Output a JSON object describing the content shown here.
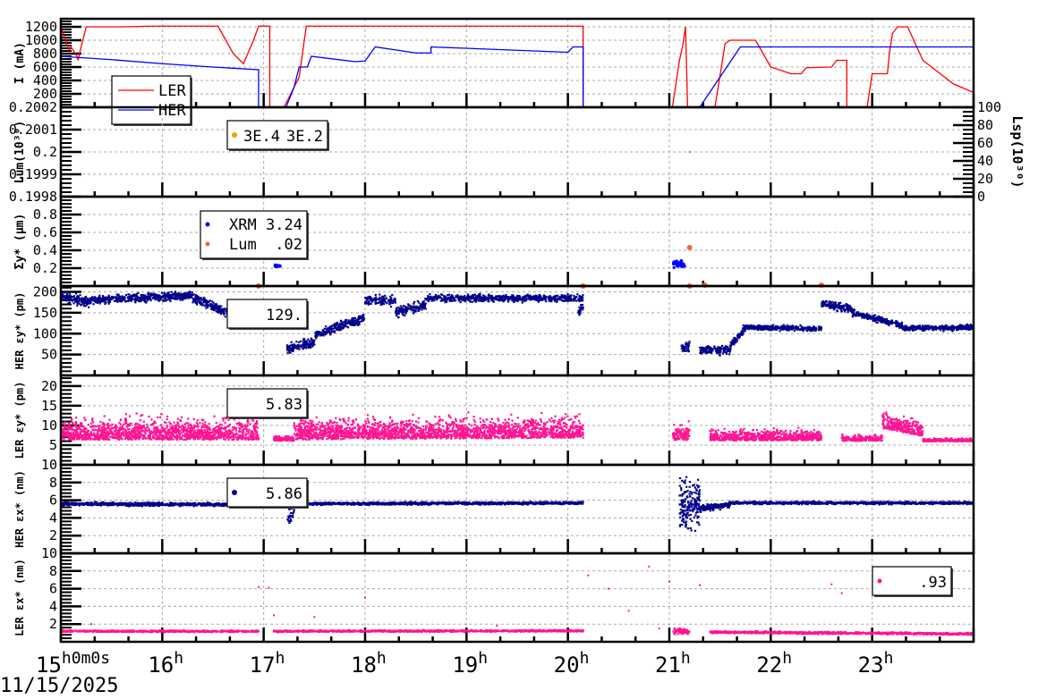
{
  "chart_data": {
    "type": "line+scatter (stacked time-series panels)",
    "xlabel_date": "11/15/2025",
    "xlim": [
      15,
      24
    ],
    "xticks": [
      {
        "h": 15,
        "label": "15",
        "sup": "h0m0s"
      },
      {
        "h": 16,
        "label": "16",
        "sup": "h"
      },
      {
        "h": 17,
        "label": "17",
        "sup": "h"
      },
      {
        "h": 18,
        "label": "18",
        "sup": "h"
      },
      {
        "h": 19,
        "label": "19",
        "sup": "h"
      },
      {
        "h": 20,
        "label": "20",
        "sup": "h"
      },
      {
        "h": 21,
        "label": "21",
        "sup": "h"
      },
      {
        "h": 22,
        "label": "22",
        "sup": "h"
      },
      {
        "h": 23,
        "label": "23",
        "sup": "h"
      }
    ],
    "panels": [
      {
        "id": "current",
        "ylabel": "I (mA)",
        "ylim": [
          0,
          1320
        ],
        "yticks": [
          "200",
          "400",
          "600",
          "800",
          "1000",
          "1200"
        ],
        "ytickvals": [
          200,
          400,
          600,
          800,
          1000,
          1200
        ],
        "legend": [
          "LER",
          "HER"
        ],
        "series": [
          {
            "name": "LER",
            "color": "#ff0000",
            "type": "line",
            "points": [
              [
                15,
                1200
              ],
              [
                15.08,
                850
              ],
              [
                15.1,
                900
              ],
              [
                15.16,
                760
              ],
              [
                15.17,
                700
              ],
              [
                15.2,
                900
              ],
              [
                15.25,
                1200
              ],
              [
                15.6,
                1200
              ],
              [
                15.9,
                1210
              ],
              [
                16.55,
                1210
              ],
              [
                16.7,
                800
              ],
              [
                16.8,
                650
              ],
              [
                16.9,
                1000
              ],
              [
                16.95,
                1210
              ],
              [
                17.06,
                1210
              ],
              [
                17.06,
                0
              ],
              [
                17.2,
                0
              ],
              [
                17.3,
                300
              ],
              [
                17.35,
                450
              ],
              [
                17.42,
                1210
              ],
              [
                20.15,
                1210
              ],
              [
                20.15,
                0
              ],
              [
                21.03,
                0
              ],
              [
                21.1,
                700
              ],
              [
                21.13,
                900
              ],
              [
                21.16,
                1200
              ],
              [
                21.18,
                0
              ],
              [
                21.45,
                0
              ],
              [
                21.55,
                950
              ],
              [
                21.6,
                1000
              ],
              [
                21.85,
                1000
              ],
              [
                22.0,
                600
              ],
              [
                22.2,
                500
              ],
              [
                22.3,
                500
              ],
              [
                22.35,
                590
              ],
              [
                22.6,
                600
              ],
              [
                22.65,
                700
              ],
              [
                22.75,
                700
              ],
              [
                22.75,
                0
              ],
              [
                22.95,
                0
              ],
              [
                23.0,
                500
              ],
              [
                23.15,
                500
              ],
              [
                23.17,
                800
              ],
              [
                23.2,
                1100
              ],
              [
                23.25,
                1200
              ],
              [
                23.35,
                1200
              ],
              [
                23.5,
                700
              ],
              [
                23.8,
                350
              ],
              [
                24,
                220
              ]
            ]
          },
          {
            "name": "HER",
            "color": "#0000ff",
            "type": "line",
            "points": [
              [
                15,
                760
              ],
              [
                15.5,
                710
              ],
              [
                16,
                650
              ],
              [
                16.5,
                600
              ],
              [
                16.95,
                560
              ],
              [
                16.95,
                0
              ],
              [
                17.22,
                0
              ],
              [
                17.3,
                300
              ],
              [
                17.35,
                600
              ],
              [
                17.43,
                600
              ],
              [
                17.47,
                760
              ],
              [
                17.9,
                680
              ],
              [
                18.0,
                690
              ],
              [
                18.1,
                900
              ],
              [
                18.5,
                810
              ],
              [
                18.65,
                810
              ],
              [
                18.65,
                900
              ],
              [
                20.0,
                820
              ],
              [
                20.05,
                900
              ],
              [
                20.15,
                900
              ],
              [
                20.15,
                0
              ],
              [
                21.3,
                0
              ],
              [
                21.7,
                900
              ],
              [
                24,
                900
              ]
            ]
          }
        ]
      },
      {
        "id": "lum",
        "ylabel": "Lum(10³⁰)",
        "ylim": [
          0.1998,
          0.2002
        ],
        "yticks": [
          "0.1998",
          "0.1999",
          "0.2",
          "0.2001",
          "0.2002"
        ],
        "ytickvals": [
          0.1998,
          0.1999,
          0.2,
          0.2001,
          0.2002
        ],
        "y2label": "Lsp(10³⁰)",
        "y2lim": [
          0,
          100
        ],
        "y2ticks": [
          "0",
          "20",
          "40",
          "60",
          "80",
          "100"
        ],
        "legend_values": [
          "3E.4",
          "3E.2"
        ],
        "legend_color": "#f0a000"
      },
      {
        "id": "sigma",
        "ylabel": "Σy* (µm)",
        "ylim": [
          0,
          1
        ],
        "yticks": [
          "0.2",
          "0.4",
          "0.6",
          "0.8"
        ],
        "ytickvals": [
          0.2,
          0.4,
          0.6,
          0.8
        ],
        "legend": [
          {
            "name": "XRM",
            "value": "3.24",
            "color": "#0000ff"
          },
          {
            "name": "Lum",
            "value": ".02",
            "color": "#ff6040"
          }
        ],
        "XRM_segments": [
          [
            17.1,
            17.16,
            0.23,
            0.23,
            0.01,
            25
          ],
          [
            21.03,
            21.15,
            0.25,
            0.25,
            0.03,
            40
          ]
        ],
        "Lum_points": [
          [
            16.95,
            0.0
          ],
          [
            20.15,
            0.0
          ],
          [
            21.2,
            0.43
          ],
          [
            21.2,
            0.0
          ],
          [
            21.35,
            0.01
          ],
          [
            22.5,
            0.01
          ]
        ]
      },
      {
        "id": "her_ey",
        "ylabel": "HER εy* (pm)",
        "ylim": [
          0,
          214
        ],
        "yticks": [
          "50",
          "100",
          "150",
          "200"
        ],
        "ytickvals": [
          50,
          100,
          150,
          200
        ],
        "legend_value": "129.",
        "color": "#00008b",
        "segments": [
          [
            15,
            15.3,
            190,
            175,
            10,
            150
          ],
          [
            15.3,
            16.3,
            180,
            192,
            8,
            450
          ],
          [
            16.3,
            16.75,
            185,
            140,
            10,
            200
          ],
          [
            16.75,
            16.95,
            140,
            165,
            10,
            100
          ],
          [
            17.23,
            17.5,
            65,
            80,
            10,
            120
          ],
          [
            17.5,
            18.0,
            95,
            140,
            10,
            220
          ],
          [
            18.0,
            18.3,
            180,
            180,
            10,
            120
          ],
          [
            18.3,
            18.6,
            150,
            170,
            10,
            130
          ],
          [
            18.6,
            20.15,
            185,
            185,
            7,
            600
          ],
          [
            20.1,
            20.15,
            150,
            165,
            10,
            30
          ],
          [
            21.12,
            21.2,
            65,
            70,
            12,
            40
          ],
          [
            21.3,
            21.6,
            60,
            62,
            9,
            130
          ],
          [
            21.6,
            21.75,
            70,
            115,
            8,
            70
          ],
          [
            21.75,
            22.5,
            115,
            112,
            5,
            330
          ],
          [
            22.5,
            22.8,
            172,
            160,
            8,
            140
          ],
          [
            22.8,
            23.3,
            150,
            120,
            6,
            220
          ],
          [
            23.3,
            24,
            113,
            115,
            5,
            320
          ]
        ]
      },
      {
        "id": "ler_ey",
        "ylabel": "LER εy* (pm)",
        "ylim": [
          0,
          22.7
        ],
        "yticks": [
          "5",
          "10",
          "15",
          "20"
        ],
        "ytickvals": [
          5,
          10,
          15,
          20
        ],
        "legend_value": "5.83",
        "color": "#ff1493",
        "segments": [
          [
            15,
            16.95,
            10,
            10,
            4,
            1400
          ],
          [
            17.1,
            17.3,
            7,
            7,
            1,
            120
          ],
          [
            17.3,
            20.15,
            10,
            10.5,
            4,
            2000
          ],
          [
            21.03,
            21.2,
            9,
            9,
            3,
            120
          ],
          [
            21.4,
            22.5,
            8,
            8,
            2,
            700
          ],
          [
            22.7,
            23.1,
            7,
            7,
            1,
            200
          ],
          [
            23.1,
            23.5,
            12,
            10,
            3,
            260
          ],
          [
            23.5,
            24,
            6.5,
            6.5,
            0.6,
            250
          ]
        ]
      },
      {
        "id": "her_ex",
        "ylabel": "HER εx* (nm)",
        "ylim": [
          0,
          10
        ],
        "yticks": [
          "2",
          "4",
          "6",
          "8",
          "10"
        ],
        "ytickvals": [
          2,
          4,
          6,
          8,
          10
        ],
        "legend_value": "5.86",
        "color": "#00008b",
        "segments": [
          [
            15,
            16.95,
            5.6,
            5.5,
            0.15,
            800
          ],
          [
            17.23,
            17.3,
            3.5,
            5.2,
            1.2,
            30
          ],
          [
            17.3,
            20.15,
            5.6,
            5.7,
            0.12,
            1100
          ],
          [
            21.1,
            21.3,
            5.5,
            5.5,
            2.5,
            180
          ],
          [
            21.3,
            21.6,
            5.0,
            5.6,
            0.3,
            150
          ],
          [
            21.6,
            24,
            5.7,
            5.7,
            0.12,
            900
          ]
        ]
      },
      {
        "id": "ler_ex",
        "ylabel": "LER εx* (nm)",
        "ylim": [
          0,
          10
        ],
        "yticks": [
          "2",
          "4",
          "6",
          "8",
          "10"
        ],
        "ytickvals": [
          2,
          4,
          6,
          8,
          10
        ],
        "legend_value": ".93",
        "color": "#ff1493",
        "segments": [
          [
            15,
            16.95,
            1.2,
            1.2,
            0.08,
            700
          ],
          [
            17.1,
            20.15,
            1.2,
            1.25,
            0.08,
            1100
          ],
          [
            21.03,
            21.2,
            1.2,
            1.2,
            0.3,
            60
          ],
          [
            21.4,
            24,
            1.1,
            0.9,
            0.1,
            950
          ]
        ],
        "outliers": [
          [
            16.95,
            6.2
          ],
          [
            17.05,
            6.1
          ],
          [
            17.1,
            3.0
          ],
          [
            17.5,
            2.8
          ],
          [
            18.0,
            5.0
          ],
          [
            20.2,
            7.5
          ],
          [
            20.4,
            6.0
          ],
          [
            20.8,
            8.5
          ],
          [
            20.6,
            3.5
          ],
          [
            20.9,
            1.5
          ],
          [
            21.0,
            6.8
          ],
          [
            21.3,
            6.4
          ],
          [
            22.6,
            6.5
          ],
          [
            22.7,
            5.5
          ],
          [
            22.65,
            1.0
          ],
          [
            15.3,
            2.0
          ],
          [
            19.3,
            1.8
          ]
        ]
      }
    ]
  }
}
